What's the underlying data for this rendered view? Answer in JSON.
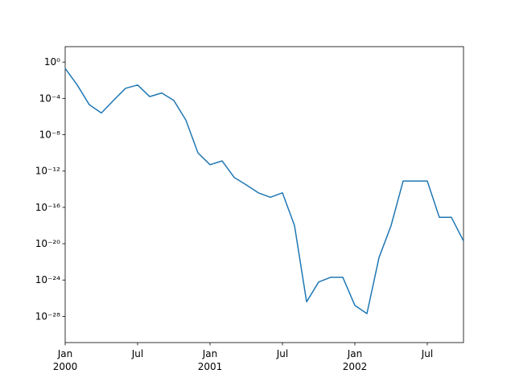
{
  "chart_data": {
    "type": "line",
    "log_y": true,
    "color": "#1f77b4",
    "x": [
      "2000-01",
      "2000-02",
      "2000-03",
      "2000-04",
      "2000-05",
      "2000-06",
      "2000-07",
      "2000-08",
      "2000-09",
      "2000-10",
      "2000-11",
      "2000-12",
      "2001-01",
      "2001-02",
      "2001-03",
      "2001-04",
      "2001-05",
      "2001-06",
      "2001-07",
      "2001-08",
      "2001-09",
      "2001-10",
      "2001-11",
      "2001-12",
      "2002-01",
      "2002-02",
      "2002-03",
      "2002-04",
      "2002-05",
      "2002-06",
      "2002-07",
      "2002-08",
      "2002-09",
      "2002-10"
    ],
    "values": [
      0.2,
      0.003,
      2e-05,
      2.5e-06,
      6e-05,
      0.0013,
      0.003,
      0.00016,
      0.0004,
      6e-05,
      4e-07,
      1e-10,
      5e-12,
      1.3e-11,
      2e-13,
      3e-14,
      4e-15,
      1.3e-15,
      4e-15,
      1e-18,
      4e-27,
      6e-25,
      2e-24,
      2e-24,
      1.6e-27,
      2e-28,
      3e-22,
      1e-18,
      8e-14,
      8e-14,
      8e-14,
      8e-18,
      8e-18,
      2e-20
    ],
    "xlim": [
      "2000-01",
      "2002-10"
    ],
    "xticks": [
      {
        "value": "2000-01",
        "label": "Jan\n2000"
      },
      {
        "value": "2000-07",
        "label": "Jul"
      },
      {
        "value": "2001-01",
        "label": "Jan\n2001"
      },
      {
        "value": "2001-07",
        "label": "Jul"
      },
      {
        "value": "2002-01",
        "label": "Jan\n2002"
      },
      {
        "value": "2002-07",
        "label": "Jul"
      }
    ],
    "ylim": [
      1.3e-31,
      50
    ],
    "yticks": [
      {
        "value": 1,
        "label": "10⁰"
      },
      {
        "value": 0.0001,
        "label": "10⁻⁴"
      },
      {
        "value": 1e-08,
        "label": "10⁻⁸"
      },
      {
        "value": 1e-12,
        "label": "10⁻¹²"
      },
      {
        "value": 1e-16,
        "label": "10⁻¹⁶"
      },
      {
        "value": 1e-20,
        "label": "10⁻²⁰"
      },
      {
        "value": 1e-24,
        "label": "10⁻²⁴"
      },
      {
        "value": 1e-28,
        "label": "10⁻²⁸"
      }
    ]
  }
}
